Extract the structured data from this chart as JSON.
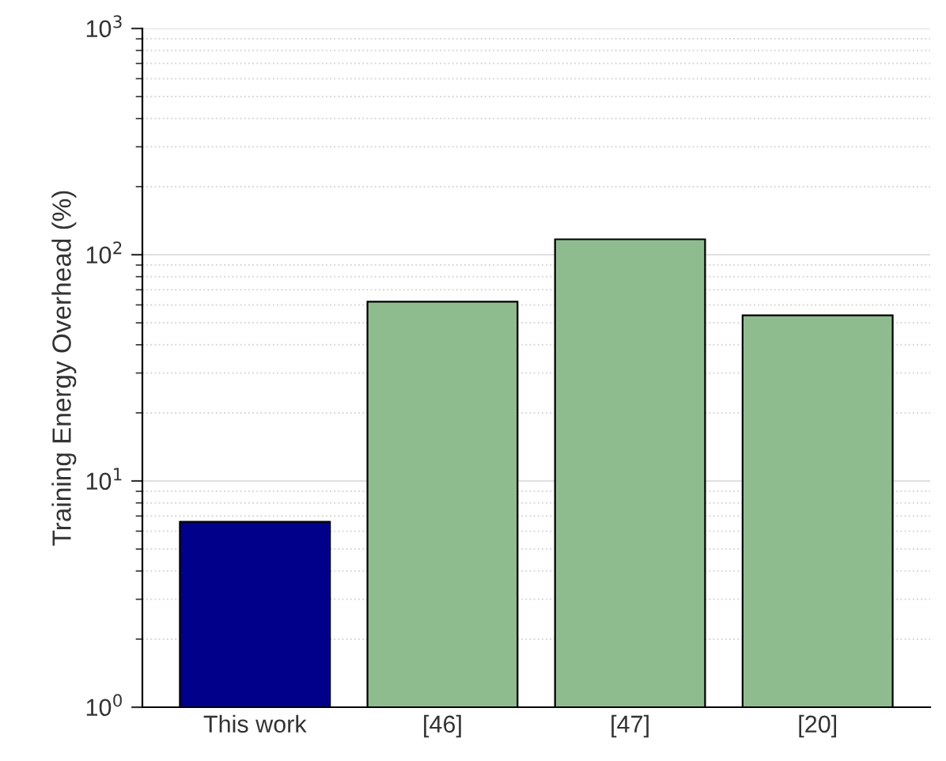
{
  "chart_data": {
    "type": "bar",
    "ylabel": "Training Energy Overhead (%)",
    "categories": [
      "This work",
      "[46]",
      "[47]",
      "[20]"
    ],
    "values": [
      6.6,
      62,
      117,
      54
    ],
    "colors": [
      "#00008b",
      "#8fbc8f",
      "#8fbc8f",
      "#8fbc8f"
    ],
    "log": true,
    "ylim": [
      1,
      1000
    ],
    "yticks": [
      {
        "value": 1,
        "label": "10$^{0}$"
      },
      {
        "value": 10,
        "label": "10$^{1}$"
      },
      {
        "value": 100,
        "label": "10$^{2}$"
      },
      {
        "value": 1000,
        "label": "10$^{3}$"
      }
    ],
    "grid": true
  }
}
